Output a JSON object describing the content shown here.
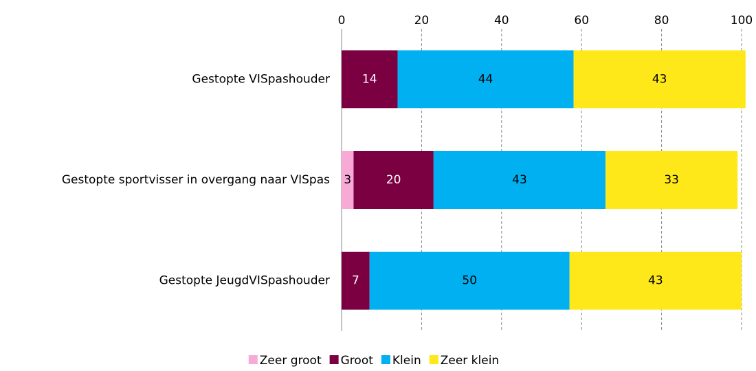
{
  "chart_data": {
    "type": "stacked-bar-horizontal",
    "categories": [
      "Gestopte VISpashouder",
      "Gestopte sportvisser in overgang naar VISpas",
      "Gestopte JeugdVISpashouder"
    ],
    "series": [
      {
        "name": "Zeer groot",
        "color": "#f8a9d6",
        "values": [
          null,
          3,
          null
        ]
      },
      {
        "name": "Groot",
        "color": "#7b0041",
        "values": [
          14,
          20,
          7
        ]
      },
      {
        "name": "Klein",
        "color": "#00b0f0",
        "values": [
          44,
          43,
          50
        ]
      },
      {
        "name": "Zeer klein",
        "color": "#ffe81a",
        "values": [
          43,
          33,
          43
        ]
      }
    ],
    "xlim": [
      0,
      100
    ],
    "xticks": [
      0,
      20,
      40,
      60,
      80,
      100
    ],
    "grid": true,
    "legend": "bottom"
  }
}
